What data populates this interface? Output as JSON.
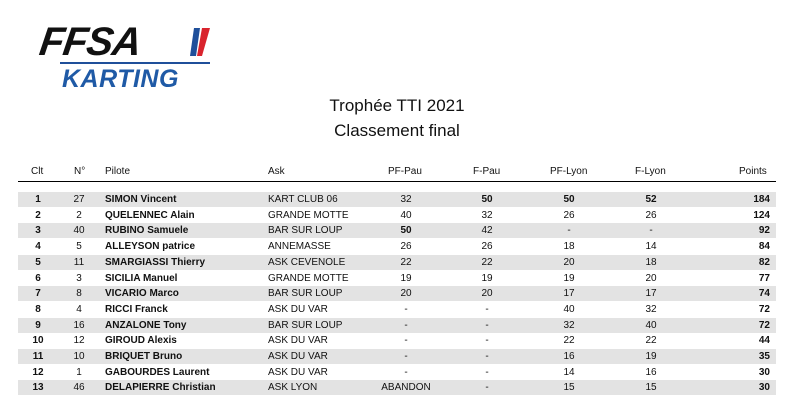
{
  "logo": {
    "text": "FFSA",
    "subtext": "KARTING"
  },
  "title": "Trophée TTI 2021",
  "subtitle": "Classement final",
  "headers": {
    "clt": "Clt",
    "num": "N°",
    "pilote": "Pilote",
    "ask": "Ask",
    "pf_pau": "PF-Pau",
    "f_pau": "F-Pau",
    "pf_lyon": "PF-Lyon",
    "f_lyon": "F-Lyon",
    "points": "Points"
  },
  "rows": [
    {
      "clt": "1",
      "num": "27",
      "pilote": "SIMON Vincent",
      "ask": "KART CLUB 06",
      "pf_pau": "32",
      "f_pau": "50",
      "pf_lyon": "50",
      "f_lyon": "52",
      "points": "184",
      "bold": [
        "f_pau",
        "pf_lyon",
        "f_lyon"
      ]
    },
    {
      "clt": "2",
      "num": "2",
      "pilote": "QUELENNEC  Alain",
      "ask": "GRANDE MOTTE",
      "pf_pau": "40",
      "f_pau": "32",
      "pf_lyon": "26",
      "f_lyon": "26",
      "points": "124",
      "bold": []
    },
    {
      "clt": "3",
      "num": "40",
      "pilote": "RUBINO Samuele",
      "ask": " BAR SUR LOUP",
      "pf_pau": "50",
      "f_pau": "42",
      "pf_lyon": "-",
      "f_lyon": "-",
      "points": "92",
      "bold": [
        "pf_pau"
      ]
    },
    {
      "clt": "4",
      "num": "5",
      "pilote": "ALLEYSON  patrice",
      "ask": "ANNEMASSE",
      "pf_pau": "26",
      "f_pau": "26",
      "pf_lyon": "18",
      "f_lyon": "14",
      "points": "84",
      "bold": []
    },
    {
      "clt": "5",
      "num": "11",
      "pilote": "SMARGIASSI Thierry",
      "ask": "ASK CEVENOLE",
      "pf_pau": "22",
      "f_pau": "22",
      "pf_lyon": "20",
      "f_lyon": "18",
      "points": "82",
      "bold": []
    },
    {
      "clt": "6",
      "num": "3",
      "pilote": "SICILIA  Manuel",
      "ask": "GRANDE MOTTE",
      "pf_pau": "19",
      "f_pau": "19",
      "pf_lyon": "19",
      "f_lyon": "20",
      "points": "77",
      "bold": []
    },
    {
      "clt": "7",
      "num": "8",
      "pilote": "VICARIO Marco",
      "ask": "BAR SUR LOUP",
      "pf_pau": "20",
      "f_pau": "20",
      "pf_lyon": "17",
      "f_lyon": "17",
      "points": "74",
      "bold": []
    },
    {
      "clt": "8",
      "num": "4",
      "pilote": "RICCI  Franck",
      "ask": "ASK DU VAR",
      "pf_pau": "-",
      "f_pau": "-",
      "pf_lyon": "40",
      "f_lyon": "32",
      "points": "72",
      "bold": []
    },
    {
      "clt": "9",
      "num": "16",
      "pilote": "ANZALONE  Tony",
      "ask": "BAR SUR LOUP",
      "pf_pau": "-",
      "f_pau": "-",
      "pf_lyon": "32",
      "f_lyon": "40",
      "points": "72",
      "bold": []
    },
    {
      "clt": "10",
      "num": "12",
      "pilote": "GIROUD Alexis",
      "ask": "ASK DU VAR",
      "pf_pau": "-",
      "f_pau": "-",
      "pf_lyon": "22",
      "f_lyon": "22",
      "points": "44",
      "bold": []
    },
    {
      "clt": "11",
      "num": "10",
      "pilote": "BRIQUET Bruno",
      "ask": "ASK DU VAR",
      "pf_pau": "-",
      "f_pau": "-",
      "pf_lyon": "16",
      "f_lyon": "19",
      "points": "35",
      "bold": []
    },
    {
      "clt": "12",
      "num": "1",
      "pilote": "GABOURDES  Laurent",
      "ask": "ASK DU VAR",
      "pf_pau": "-",
      "f_pau": "-",
      "pf_lyon": "14",
      "f_lyon": "16",
      "points": "30",
      "bold": []
    },
    {
      "clt": "13",
      "num": "46",
      "pilote": "DELAPIERRE Christian",
      "ask": "ASK LYON",
      "pf_pau": "ABANDON",
      "f_pau": "-",
      "pf_lyon": "15",
      "f_lyon": "15",
      "points": "30",
      "bold": []
    }
  ]
}
